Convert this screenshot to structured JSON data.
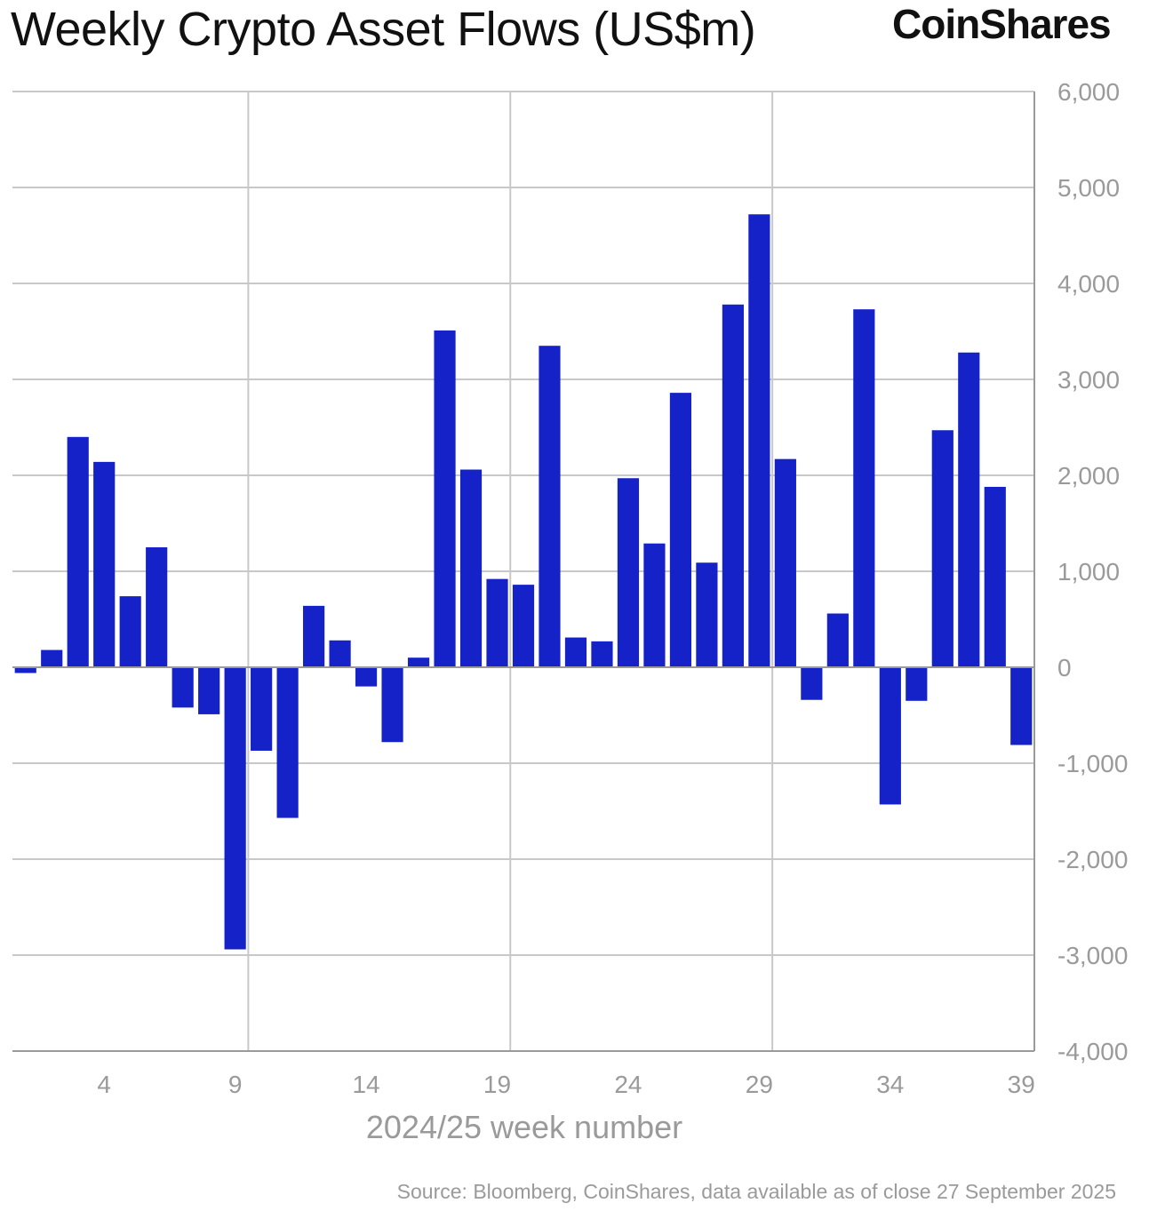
{
  "header": {
    "title": "Weekly Crypto Asset Flows (US$m)",
    "brand": "CoinShares"
  },
  "footer": {
    "source": "Source: Bloomberg, CoinShares, data available as of close 27 September 2025"
  },
  "colors": {
    "bar": "#1422c8",
    "grid": "#c8c8c8",
    "tick_label": "#9a9a9a",
    "zero_line": "#9a9a9a"
  },
  "chart_data": {
    "type": "bar",
    "title": "Weekly Crypto Asset Flows (US$m)",
    "xlabel": "2024/25 week number",
    "ylabel": "",
    "y_axis_side": "right",
    "ylim": [
      -4000,
      6000
    ],
    "yticks": [
      6000,
      5000,
      4000,
      3000,
      2000,
      1000,
      0,
      -1000,
      -2000,
      -3000,
      -4000
    ],
    "ytick_labels": [
      "6,000",
      "5,000",
      "4,000",
      "3,000",
      "2,000",
      "1,000",
      "0",
      "-1,000",
      "-2,000",
      "-3,000",
      "-4,000"
    ],
    "xticks": [
      4,
      9,
      14,
      19,
      24,
      29,
      34,
      39
    ],
    "x_gridlines": [
      9,
      19,
      29
    ],
    "grid": true,
    "x": [
      1,
      2,
      3,
      4,
      5,
      6,
      7,
      8,
      9,
      10,
      11,
      12,
      13,
      14,
      15,
      16,
      17,
      18,
      19,
      20,
      21,
      22,
      23,
      24,
      25,
      26,
      27,
      28,
      29,
      30,
      31,
      32,
      33,
      34,
      35,
      36,
      37,
      38,
      39
    ],
    "values": [
      -60,
      180,
      2400,
      2140,
      740,
      1250,
      -420,
      -490,
      -2940,
      -870,
      -1570,
      640,
      280,
      -200,
      -780,
      100,
      3510,
      2060,
      920,
      860,
      3350,
      310,
      270,
      1970,
      1290,
      2860,
      1090,
      3780,
      4720,
      2170,
      -340,
      560,
      3730,
      -1430,
      -350,
      2470,
      3280,
      1880,
      -810
    ]
  }
}
